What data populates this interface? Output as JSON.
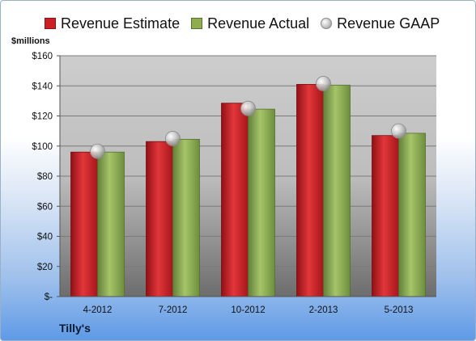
{
  "legend": {
    "estimate": "Revenue Estimate",
    "actual": "Revenue Actual",
    "gaap": "Revenue GAAP"
  },
  "units": "$millions",
  "company": "Tilly's",
  "colors": {
    "estimate": "#cc1f24",
    "actual": "#8fad4f",
    "gaap": "#bdbdbd"
  },
  "chart_data": {
    "type": "bar",
    "categories": [
      "4-2012",
      "7-2012",
      "10-2012",
      "2-2013",
      "5-2013"
    ],
    "series": [
      {
        "name": "Revenue Estimate",
        "values": [
          96,
          103,
          128.5,
          141,
          107
        ]
      },
      {
        "name": "Revenue Actual",
        "values": [
          96,
          104.5,
          124.5,
          140.5,
          108.5
        ]
      },
      {
        "name": "Revenue GAAP",
        "values": [
          96.5,
          105,
          125,
          141.5,
          110
        ]
      }
    ],
    "ylim": [
      0,
      160
    ],
    "y_ticks": [
      0,
      20,
      40,
      60,
      80,
      100,
      120,
      140,
      160
    ],
    "y_tick_labels": [
      "$-",
      "$20",
      "$40",
      "$60",
      "$80",
      "$100",
      "$120",
      "$140",
      "$160"
    ],
    "ylabel": "$millions",
    "grid": true,
    "legend_position": "top"
  }
}
